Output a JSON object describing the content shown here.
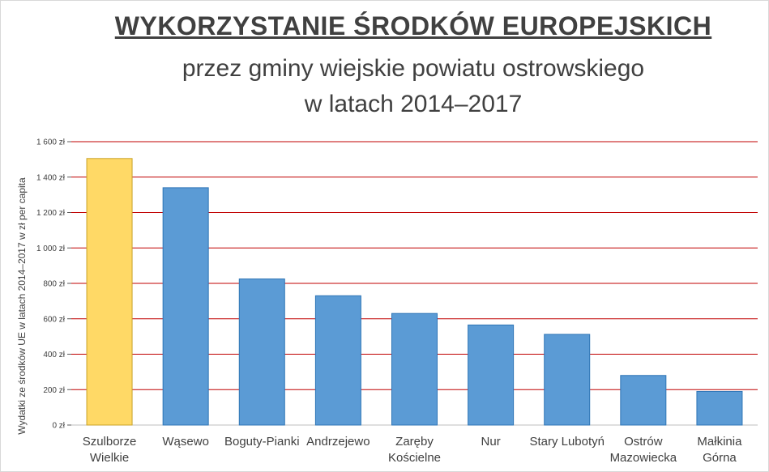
{
  "chart_data": {
    "type": "bar",
    "title": "WYKORZYSTANIE ŚRODKÓW EUROPEJSKICH",
    "subtitle": [
      "przez gminy wiejskie powiatu ostrowskiego",
      "w latach 2014–2017"
    ],
    "xlabel": "",
    "ylabel": "Wydatki ze środków UE w latach 2014–2017 w zł per capita",
    "categories": [
      "Szulborze\nWielkie",
      "Wąsewo",
      "Boguty-Pianki",
      "Andrzejewo",
      "Zaręby\nKościelne",
      "Nur",
      "Stary Lubotyń",
      "Ostrów\nMazowiecka",
      "Małkinia\nGórna"
    ],
    "values": [
      1505,
      1340,
      825,
      730,
      630,
      565,
      512,
      280,
      190
    ],
    "bar_colors": [
      "#ffd966",
      "#5b9bd5",
      "#5b9bd5",
      "#5b9bd5",
      "#5b9bd5",
      "#5b9bd5",
      "#5b9bd5",
      "#5b9bd5",
      "#5b9bd5"
    ],
    "ylim": [
      0,
      1600
    ],
    "yticks": [
      0,
      200,
      400,
      600,
      800,
      1000,
      1200,
      1400,
      1600
    ],
    "ytick_labels": [
      "0 zł",
      "200 zł",
      "400 zł",
      "600 zł",
      "800 zł",
      "1 000 zł",
      "1 200 zł",
      "1 400 zł",
      "1 600 zł"
    ],
    "grid": true,
    "grid_color": "#c00000",
    "legend": "none"
  }
}
